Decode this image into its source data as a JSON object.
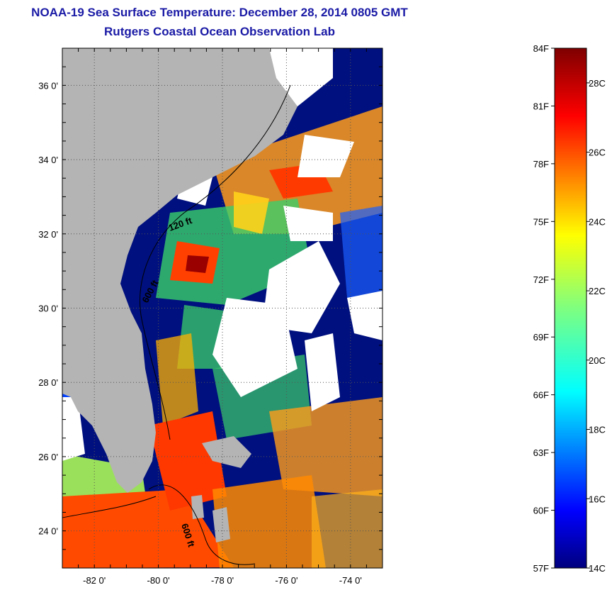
{
  "header": {
    "title": "NOAA-19 Sea Surface Temperature:  December 28, 2014 0805 GMT",
    "subtitle": "Rutgers Coastal Ocean Observation Lab"
  },
  "map": {
    "lon_range": [
      -83,
      -73
    ],
    "lat_range": [
      23,
      37
    ],
    "lon_ticks": [
      "-82 0'",
      "-80 0'",
      "-78 0'",
      "-76 0'",
      "-74 0'"
    ],
    "lat_ticks": [
      "36 0'",
      "34 0'",
      "32 0'",
      "30 0'",
      "28 0'",
      "26 0'",
      "24 0'"
    ],
    "isobath_labels": [
      "120 ft",
      "600 ft",
      "600 ft"
    ],
    "land_color": "#b4b4b4",
    "cloud_color": "#ffffff"
  },
  "colorbar": {
    "fahrenheit_labels": [
      "84F",
      "81F",
      "78F",
      "75F",
      "72F",
      "69F",
      "66F",
      "63F",
      "60F",
      "57F"
    ],
    "celsius_labels": [
      "28C",
      "26C",
      "24C",
      "22C",
      "20C",
      "18C",
      "16C",
      "14C"
    ],
    "range_c": [
      14,
      29
    ],
    "colormap": "jet"
  }
}
